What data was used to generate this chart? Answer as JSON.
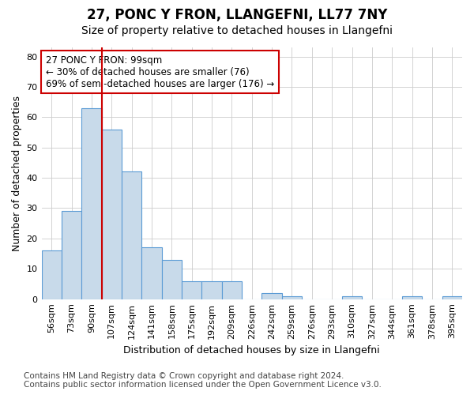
{
  "title": "27, PONC Y FRON, LLANGEFNI, LL77 7NY",
  "subtitle": "Size of property relative to detached houses in Llangefni",
  "xlabel": "Distribution of detached houses by size in Llangefni",
  "ylabel": "Number of detached properties",
  "categories": [
    "56sqm",
    "73sqm",
    "90sqm",
    "107sqm",
    "124sqm",
    "141sqm",
    "158sqm",
    "175sqm",
    "192sqm",
    "209sqm",
    "226sqm",
    "242sqm",
    "259sqm",
    "276sqm",
    "293sqm",
    "310sqm",
    "327sqm",
    "344sqm",
    "361sqm",
    "378sqm",
    "395sqm"
  ],
  "values": [
    16,
    29,
    63,
    56,
    42,
    17,
    13,
    6,
    6,
    6,
    0,
    2,
    1,
    0,
    0,
    1,
    0,
    0,
    1,
    0,
    1
  ],
  "bar_color": "#c8daea",
  "bar_edge_color": "#5b9bd5",
  "vline_x": 2.5,
  "vline_color": "#cc0000",
  "annotation_text": "27 PONC Y FRON: 99sqm\n← 30% of detached houses are smaller (76)\n69% of semi-detached houses are larger (176) →",
  "annotation_box_color": "#ffffff",
  "annotation_box_edge": "#cc0000",
  "ylim": [
    0,
    83
  ],
  "yticks": [
    0,
    10,
    20,
    30,
    40,
    50,
    60,
    70,
    80
  ],
  "footnote": "Contains HM Land Registry data © Crown copyright and database right 2024.\nContains public sector information licensed under the Open Government Licence v3.0.",
  "background_color": "#ffffff",
  "plot_bg_color": "#ffffff",
  "grid_color": "#cccccc",
  "title_fontsize": 12,
  "subtitle_fontsize": 10,
  "axis_label_fontsize": 9,
  "tick_fontsize": 8,
  "annotation_fontsize": 8.5,
  "footnote_fontsize": 7.5
}
